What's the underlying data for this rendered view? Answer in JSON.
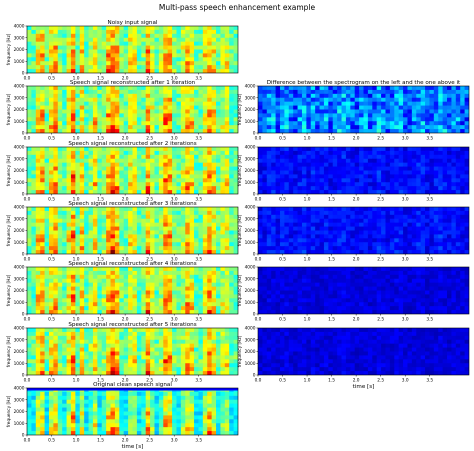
{
  "figure": {
    "title": "Multi-pass speech enhancement example"
  },
  "colors": {
    "jet": [
      "#00007f",
      "#0000ff",
      "#0080ff",
      "#00ffff",
      "#80ff80",
      "#ffff00",
      "#ff8000",
      "#ff0000",
      "#7f0000"
    ],
    "frame": "#000000"
  },
  "chart_data": [
    {
      "type": "heatmap",
      "id": "L0",
      "title": "Noisy input signal",
      "xlabel": "",
      "ylabel": "frequency [Hz]",
      "xlim": [
        0,
        4.3
      ],
      "ylim": [
        0,
        4000
      ],
      "xticks": [
        "0.0",
        "0.5",
        "1.0",
        "1.5",
        "2.0",
        "2.5",
        "3.0",
        "3.5"
      ],
      "yticks": [
        "0",
        "1000",
        "2000",
        "3000",
        "4000"
      ],
      "intensity": "high",
      "column": "left"
    },
    {
      "type": "heatmap",
      "id": "L1",
      "title": "Speech signal reconstructed after 1 iteration",
      "xlabel": "",
      "ylabel": "frequency [Hz]",
      "xlim": [
        0,
        4.3
      ],
      "ylim": [
        0,
        4000
      ],
      "xticks": [
        "0.0",
        "0.5",
        "1.0",
        "1.5",
        "2.0",
        "2.5",
        "3.0",
        "3.5"
      ],
      "yticks": [
        "0",
        "1000",
        "2000",
        "3000",
        "4000"
      ],
      "intensity": "high",
      "column": "left"
    },
    {
      "type": "heatmap",
      "id": "L2",
      "title": "Speech signal reconstructed after 2 iterations",
      "xlabel": "",
      "ylabel": "frequency [Hz]",
      "xlim": [
        0,
        4.3
      ],
      "ylim": [
        0,
        4000
      ],
      "xticks": [
        "0.0",
        "0.5",
        "1.0",
        "1.5",
        "2.0",
        "2.5",
        "3.0",
        "3.5"
      ],
      "yticks": [
        "0",
        "1000",
        "2000",
        "3000",
        "4000"
      ],
      "intensity": "high",
      "column": "left"
    },
    {
      "type": "heatmap",
      "id": "L3",
      "title": "Speech signal reconstructed after 3 iterations",
      "xlabel": "",
      "ylabel": "frequency [Hz]",
      "xlim": [
        0,
        4.3
      ],
      "ylim": [
        0,
        4000
      ],
      "xticks": [
        "0.0",
        "0.5",
        "1.0",
        "1.5",
        "2.0",
        "2.5",
        "3.0",
        "3.5"
      ],
      "yticks": [
        "0",
        "1000",
        "2000",
        "3000",
        "4000"
      ],
      "intensity": "high",
      "column": "left"
    },
    {
      "type": "heatmap",
      "id": "L4",
      "title": "Speech signal reconstructed after 4 iterations",
      "xlabel": "",
      "ylabel": "frequency [Hz]",
      "xlim": [
        0,
        4.3
      ],
      "ylim": [
        0,
        4000
      ],
      "xticks": [
        "0.0",
        "0.5",
        "1.0",
        "1.5",
        "2.0",
        "2.5",
        "3.0",
        "3.5"
      ],
      "yticks": [
        "0",
        "1000",
        "2000",
        "3000",
        "4000"
      ],
      "intensity": "high",
      "column": "left"
    },
    {
      "type": "heatmap",
      "id": "L5",
      "title": "Speech signal reconstructed after 5 iterations",
      "xlabel": "",
      "ylabel": "frequency [Hz]",
      "xlim": [
        0,
        4.3
      ],
      "ylim": [
        0,
        4000
      ],
      "xticks": [
        "0.0",
        "0.5",
        "1.0",
        "1.5",
        "2.0",
        "2.5",
        "3.0",
        "3.5"
      ],
      "yticks": [
        "0",
        "1000",
        "2000",
        "3000",
        "4000"
      ],
      "intensity": "high",
      "column": "left"
    },
    {
      "type": "heatmap",
      "id": "L6",
      "title": "Original clean speech signal",
      "xlabel": "time [s]",
      "ylabel": "frequency [Hz]",
      "xlim": [
        0,
        4.3
      ],
      "ylim": [
        0,
        4000
      ],
      "xticks": [
        "0.0",
        "0.5",
        "1.0",
        "1.5",
        "2.0",
        "2.5",
        "3.0",
        "3.5"
      ],
      "yticks": [
        "0",
        "1000",
        "2000",
        "3000",
        "4000"
      ],
      "intensity": "clean",
      "column": "left"
    },
    {
      "type": "heatmap",
      "id": "R1",
      "title": "Difference between the spectrogram on the left and the one above it",
      "xlabel": "",
      "ylabel": "frequency [Hz]",
      "xlim": [
        0,
        4.3
      ],
      "ylim": [
        0,
        4000
      ],
      "xticks": [
        "0.0",
        "0.5",
        "1.0",
        "1.5",
        "2.0",
        "2.5",
        "3.0",
        "3.5"
      ],
      "yticks": [
        "0",
        "1000",
        "2000",
        "3000",
        "4000"
      ],
      "intensity": "mid",
      "column": "right"
    },
    {
      "type": "heatmap",
      "id": "R2",
      "title": "",
      "xlabel": "",
      "ylabel": "frequency [Hz]",
      "xlim": [
        0,
        4.3
      ],
      "ylim": [
        0,
        4000
      ],
      "xticks": [
        "0.0",
        "0.5",
        "1.0",
        "1.5",
        "2.0",
        "2.5",
        "3.0",
        "3.5"
      ],
      "yticks": [
        "0",
        "1000",
        "2000",
        "3000",
        "4000"
      ],
      "intensity": "low",
      "column": "right"
    },
    {
      "type": "heatmap",
      "id": "R3",
      "title": "",
      "xlabel": "",
      "ylabel": "frequency [Hz]",
      "xlim": [
        0,
        4.3
      ],
      "ylim": [
        0,
        4000
      ],
      "xticks": [
        "0.0",
        "0.5",
        "1.0",
        "1.5",
        "2.0",
        "2.5",
        "3.0",
        "3.5"
      ],
      "yticks": [
        "0",
        "1000",
        "2000",
        "3000",
        "4000"
      ],
      "intensity": "low",
      "column": "right"
    },
    {
      "type": "heatmap",
      "id": "R4",
      "title": "",
      "xlabel": "",
      "ylabel": "frequency [Hz]",
      "xlim": [
        0,
        4.3
      ],
      "ylim": [
        0,
        4000
      ],
      "xticks": [
        "0.0",
        "0.5",
        "1.0",
        "1.5",
        "2.0",
        "2.5",
        "3.0",
        "3.5"
      ],
      "yticks": [
        "0",
        "1000",
        "2000",
        "3000",
        "4000"
      ],
      "intensity": "verylow",
      "column": "right"
    },
    {
      "type": "heatmap",
      "id": "R5",
      "title": "",
      "xlabel": "time [s]",
      "ylabel": "frequency [Hz]",
      "xlim": [
        0,
        4.3
      ],
      "ylim": [
        0,
        4000
      ],
      "xticks": [
        "0.0",
        "0.5",
        "1.0",
        "1.5",
        "2.0",
        "2.5",
        "3.0",
        "3.5"
      ],
      "yticks": [
        "0",
        "1000",
        "2000",
        "3000",
        "4000"
      ],
      "intensity": "verylow",
      "column": "right"
    }
  ]
}
